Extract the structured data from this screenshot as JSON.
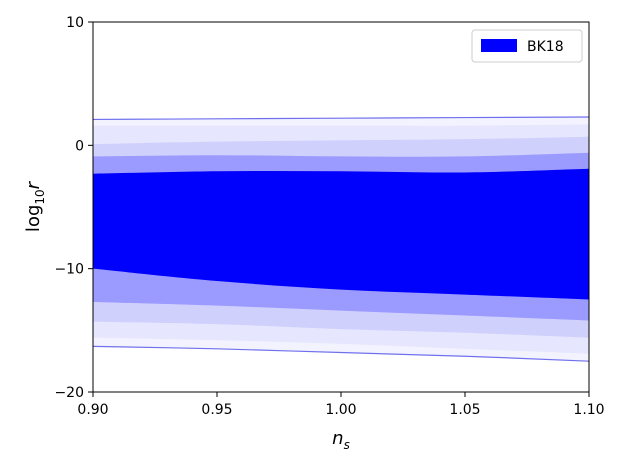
{
  "chart_data": {
    "type": "area",
    "title": "",
    "xlabel": "n_s",
    "ylabel": "log10 r",
    "xlim": [
      0.9,
      1.1
    ],
    "ylim": [
      -20,
      10
    ],
    "xticks": [
      0.9,
      0.95,
      1.0,
      1.05,
      1.1
    ],
    "xtick_labels": [
      "0.90",
      "0.95",
      "1.00",
      "1.05",
      "1.10"
    ],
    "yticks": [
      10,
      0,
      -10,
      -20
    ],
    "ytick_labels": [
      "10",
      "0",
      "−10",
      "−20"
    ],
    "grid": false,
    "legend": {
      "position": "top-right",
      "entries": [
        "BK18"
      ]
    },
    "x": [
      0.9,
      0.95,
      1.0,
      1.05,
      1.1
    ],
    "bands": [
      {
        "level": 5,
        "color": "#f3f3ff",
        "upper": [
          2.1,
          2.15,
          2.2,
          2.25,
          2.3
        ],
        "lower": [
          -16.3,
          -16.5,
          -16.8,
          -17.1,
          -17.5
        ]
      },
      {
        "level": 4,
        "color": "#e6e6fe",
        "upper": [
          1.6,
          1.6,
          1.6,
          1.6,
          1.7
        ],
        "lower": [
          -15.6,
          -15.8,
          -16.1,
          -16.5,
          -16.9
        ]
      },
      {
        "level": 3,
        "color": "#d0d0fd",
        "upper": [
          0.1,
          0.3,
          0.4,
          0.5,
          0.7
        ],
        "lower": [
          -14.3,
          -14.5,
          -14.9,
          -15.2,
          -15.6
        ]
      },
      {
        "level": 2,
        "color": "#9a9aff",
        "upper": [
          -0.9,
          -0.8,
          -0.9,
          -0.9,
          -0.6
        ],
        "lower": [
          -12.7,
          -13.0,
          -13.4,
          -13.8,
          -14.2
        ]
      },
      {
        "level": 1,
        "color": "#0000fd",
        "upper": [
          -2.3,
          -2.1,
          -2.1,
          -2.2,
          -1.9
        ],
        "lower": [
          -10.0,
          -11.0,
          -11.7,
          -12.1,
          -12.5
        ]
      }
    ],
    "series": [
      {
        "name": "BK18",
        "color": "#0000ff"
      }
    ],
    "outer_contour": {
      "color": "#7070ee",
      "upper": [
        2.1,
        2.15,
        2.2,
        2.25,
        2.3
      ],
      "lower": [
        -16.3,
        -16.5,
        -16.8,
        -17.1,
        -17.5
      ]
    }
  }
}
